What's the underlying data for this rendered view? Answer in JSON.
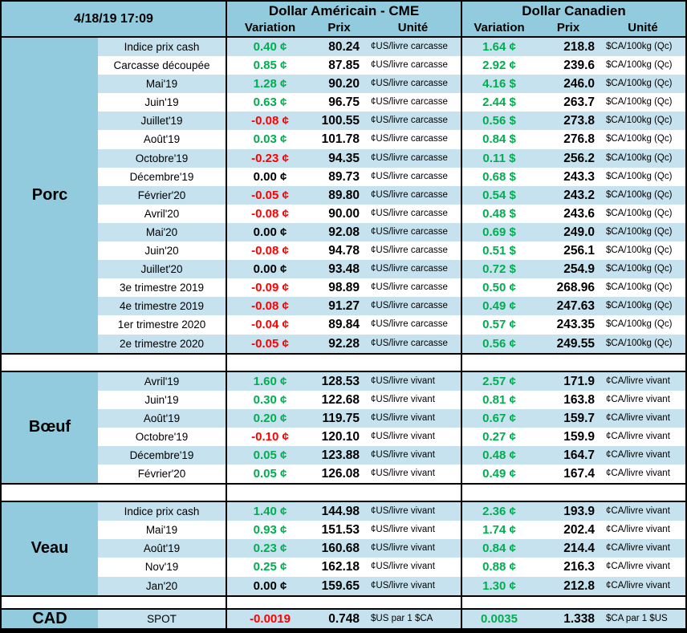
{
  "header": {
    "timestamp": "4/18/19 17:09",
    "us_title": "Dollar Américain - CME",
    "ca_title": "Dollar Canadien",
    "columns": {
      "variation": "Variation",
      "prix": "Prix",
      "unite": "Unité"
    }
  },
  "colors": {
    "positive": "#00AE50",
    "negative": "#FF0000",
    "zero": "#000000",
    "header_blue": "#92CBDD",
    "stripe_blue": "#C6E2EE"
  },
  "chart_data": {
    "type": "table",
    "title": "Prix des marchés — Dollar Américain - CME / Dollar Canadien — 4/18/19 17:09",
    "columns": [
      "Contrat",
      "Variation US",
      "Prix US",
      "Unité US",
      "Variation CA",
      "Prix CA",
      "Unité CA"
    ],
    "sections": [
      {
        "name": "Porc",
        "rows": [
          {
            "label": "Indice prix cash",
            "us_variation": "0.40 ¢",
            "us_prix": "80.24",
            "us_unite": "¢US/livre carcasse",
            "ca_variation": "1.64 ¢",
            "ca_prix": "218.8",
            "ca_unite": "$CA/100kg (Qc)"
          },
          {
            "label": "Carcasse découpée",
            "us_variation": "0.85 ¢",
            "us_prix": "87.85",
            "us_unite": "¢US/livre carcasse",
            "ca_variation": "2.92 ¢",
            "ca_prix": "239.6",
            "ca_unite": "$CA/100kg (Qc)"
          },
          {
            "label": "Mai'19",
            "us_variation": "1.28 ¢",
            "us_prix": "90.20",
            "us_unite": "¢US/livre carcasse",
            "ca_variation": "4.16 $",
            "ca_prix": "246.0",
            "ca_unite": "$CA/100kg (Qc)"
          },
          {
            "label": "Juin'19",
            "us_variation": "0.63 ¢",
            "us_prix": "96.75",
            "us_unite": "¢US/livre carcasse",
            "ca_variation": "2.44 $",
            "ca_prix": "263.7",
            "ca_unite": "$CA/100kg (Qc)"
          },
          {
            "label": "Juillet'19",
            "us_variation": "-0.08 ¢",
            "us_prix": "100.55",
            "us_unite": "¢US/livre carcasse",
            "ca_variation": "0.56 $",
            "ca_prix": "273.8",
            "ca_unite": "$CA/100kg (Qc)"
          },
          {
            "label": "Août'19",
            "us_variation": "0.03 ¢",
            "us_prix": "101.78",
            "us_unite": "¢US/livre carcasse",
            "ca_variation": "0.84 $",
            "ca_prix": "276.8",
            "ca_unite": "$CA/100kg (Qc)"
          },
          {
            "label": "Octobre'19",
            "us_variation": "-0.23 ¢",
            "us_prix": "94.35",
            "us_unite": "¢US/livre carcasse",
            "ca_variation": "0.11 $",
            "ca_prix": "256.2",
            "ca_unite": "$CA/100kg (Qc)"
          },
          {
            "label": "Décembre'19",
            "us_variation": "0.00 ¢",
            "us_prix": "89.73",
            "us_unite": "¢US/livre carcasse",
            "ca_variation": "0.68 $",
            "ca_prix": "243.3",
            "ca_unite": "$CA/100kg (Qc)"
          },
          {
            "label": "Février'20",
            "us_variation": "-0.05 ¢",
            "us_prix": "89.80",
            "us_unite": "¢US/livre carcasse",
            "ca_variation": "0.54 $",
            "ca_prix": "243.2",
            "ca_unite": "$CA/100kg (Qc)"
          },
          {
            "label": "Avril'20",
            "us_variation": "-0.08 ¢",
            "us_prix": "90.00",
            "us_unite": "¢US/livre carcasse",
            "ca_variation": "0.48 $",
            "ca_prix": "243.6",
            "ca_unite": "$CA/100kg (Qc)"
          },
          {
            "label": "Mai'20",
            "us_variation": "0.00 ¢",
            "us_prix": "92.08",
            "us_unite": "¢US/livre carcasse",
            "ca_variation": "0.69 $",
            "ca_prix": "249.0",
            "ca_unite": "$CA/100kg (Qc)"
          },
          {
            "label": "Juin'20",
            "us_variation": "-0.08 ¢",
            "us_prix": "94.78",
            "us_unite": "¢US/livre carcasse",
            "ca_variation": "0.51 $",
            "ca_prix": "256.1",
            "ca_unite": "$CA/100kg (Qc)"
          },
          {
            "label": "Juillet'20",
            "us_variation": "0.00 ¢",
            "us_prix": "93.48",
            "us_unite": "¢US/livre carcasse",
            "ca_variation": "0.72 $",
            "ca_prix": "254.9",
            "ca_unite": "$CA/100kg (Qc)"
          },
          {
            "label": "3e trimestre 2019",
            "us_variation": "-0.09 ¢",
            "us_prix": "98.89",
            "us_unite": "¢US/livre carcasse",
            "ca_variation": "0.50 ¢",
            "ca_prix": "268.96",
            "ca_unite": "$CA/100kg (Qc)"
          },
          {
            "label": "4e trimestre 2019",
            "us_variation": "-0.08 ¢",
            "us_prix": "91.27",
            "us_unite": "¢US/livre carcasse",
            "ca_variation": "0.49 ¢",
            "ca_prix": "247.63",
            "ca_unite": "$CA/100kg (Qc)"
          },
          {
            "label": "1er trimestre 2020",
            "us_variation": "-0.04 ¢",
            "us_prix": "89.84",
            "us_unite": "¢US/livre carcasse",
            "ca_variation": "0.57 ¢",
            "ca_prix": "243.35",
            "ca_unite": "$CA/100kg (Qc)"
          },
          {
            "label": "2e trimestre 2020",
            "us_variation": "-0.05 ¢",
            "us_prix": "92.28",
            "us_unite": "¢US/livre carcasse",
            "ca_variation": "0.56 ¢",
            "ca_prix": "249.55",
            "ca_unite": "$CA/100kg (Qc)"
          }
        ]
      },
      {
        "name": "Bœuf",
        "rows": [
          {
            "label": "Avril'19",
            "us_variation": "1.60 ¢",
            "us_prix": "128.53",
            "us_unite": "¢US/livre vivant",
            "ca_variation": "2.57 ¢",
            "ca_prix": "171.9",
            "ca_unite": "¢CA/livre vivant"
          },
          {
            "label": "Juin'19",
            "us_variation": "0.30 ¢",
            "us_prix": "122.68",
            "us_unite": "¢US/livre vivant",
            "ca_variation": "0.81 ¢",
            "ca_prix": "163.8",
            "ca_unite": "¢CA/livre vivant"
          },
          {
            "label": "Août'19",
            "us_variation": "0.20 ¢",
            "us_prix": "119.75",
            "us_unite": "¢US/livre vivant",
            "ca_variation": "0.67 ¢",
            "ca_prix": "159.7",
            "ca_unite": "¢CA/livre vivant"
          },
          {
            "label": "Octobre'19",
            "us_variation": "-0.10 ¢",
            "us_prix": "120.10",
            "us_unite": "¢US/livre vivant",
            "ca_variation": "0.27 ¢",
            "ca_prix": "159.9",
            "ca_unite": "¢CA/livre vivant"
          },
          {
            "label": "Décembre'19",
            "us_variation": "0.05 ¢",
            "us_prix": "123.88",
            "us_unite": "¢US/livre vivant",
            "ca_variation": "0.48 ¢",
            "ca_prix": "164.7",
            "ca_unite": "¢CA/livre vivant"
          },
          {
            "label": "Février'20",
            "us_variation": "0.05 ¢",
            "us_prix": "126.08",
            "us_unite": "¢US/livre vivant",
            "ca_variation": "0.49 ¢",
            "ca_prix": "167.4",
            "ca_unite": "¢CA/livre vivant"
          }
        ]
      },
      {
        "name": "Veau",
        "rows": [
          {
            "label": "Indice prix cash",
            "us_variation": "1.40 ¢",
            "us_prix": "144.98",
            "us_unite": "¢US/livre vivant",
            "ca_variation": "2.36 ¢",
            "ca_prix": "193.9",
            "ca_unite": "¢CA/livre vivant"
          },
          {
            "label": "Mai'19",
            "us_variation": "0.93 ¢",
            "us_prix": "151.53",
            "us_unite": "¢US/livre vivant",
            "ca_variation": "1.74 ¢",
            "ca_prix": "202.4",
            "ca_unite": "¢CA/livre vivant"
          },
          {
            "label": "Août'19",
            "us_variation": "0.23 ¢",
            "us_prix": "160.68",
            "us_unite": "¢US/livre vivant",
            "ca_variation": "0.84 ¢",
            "ca_prix": "214.4",
            "ca_unite": "¢CA/livre vivant"
          },
          {
            "label": "Nov'19",
            "us_variation": "0.25 ¢",
            "us_prix": "162.18",
            "us_unite": "¢US/livre vivant",
            "ca_variation": "0.88 ¢",
            "ca_prix": "216.3",
            "ca_unite": "¢CA/livre vivant"
          },
          {
            "label": "Jan'20",
            "us_variation": "0.00 ¢",
            "us_prix": "159.65",
            "us_unite": "¢US/livre vivant",
            "ca_variation": "1.30 ¢",
            "ca_prix": "212.8",
            "ca_unite": "¢CA/livre vivant"
          }
        ]
      },
      {
        "name": "CAD",
        "rows": [
          {
            "label": "SPOT",
            "us_variation": "-0.0019",
            "us_prix": "0.748",
            "us_unite": "$US par 1 $CA",
            "ca_variation": "0.0035",
            "ca_prix": "1.338",
            "ca_unite": "$CA par 1 $US"
          }
        ]
      }
    ]
  }
}
